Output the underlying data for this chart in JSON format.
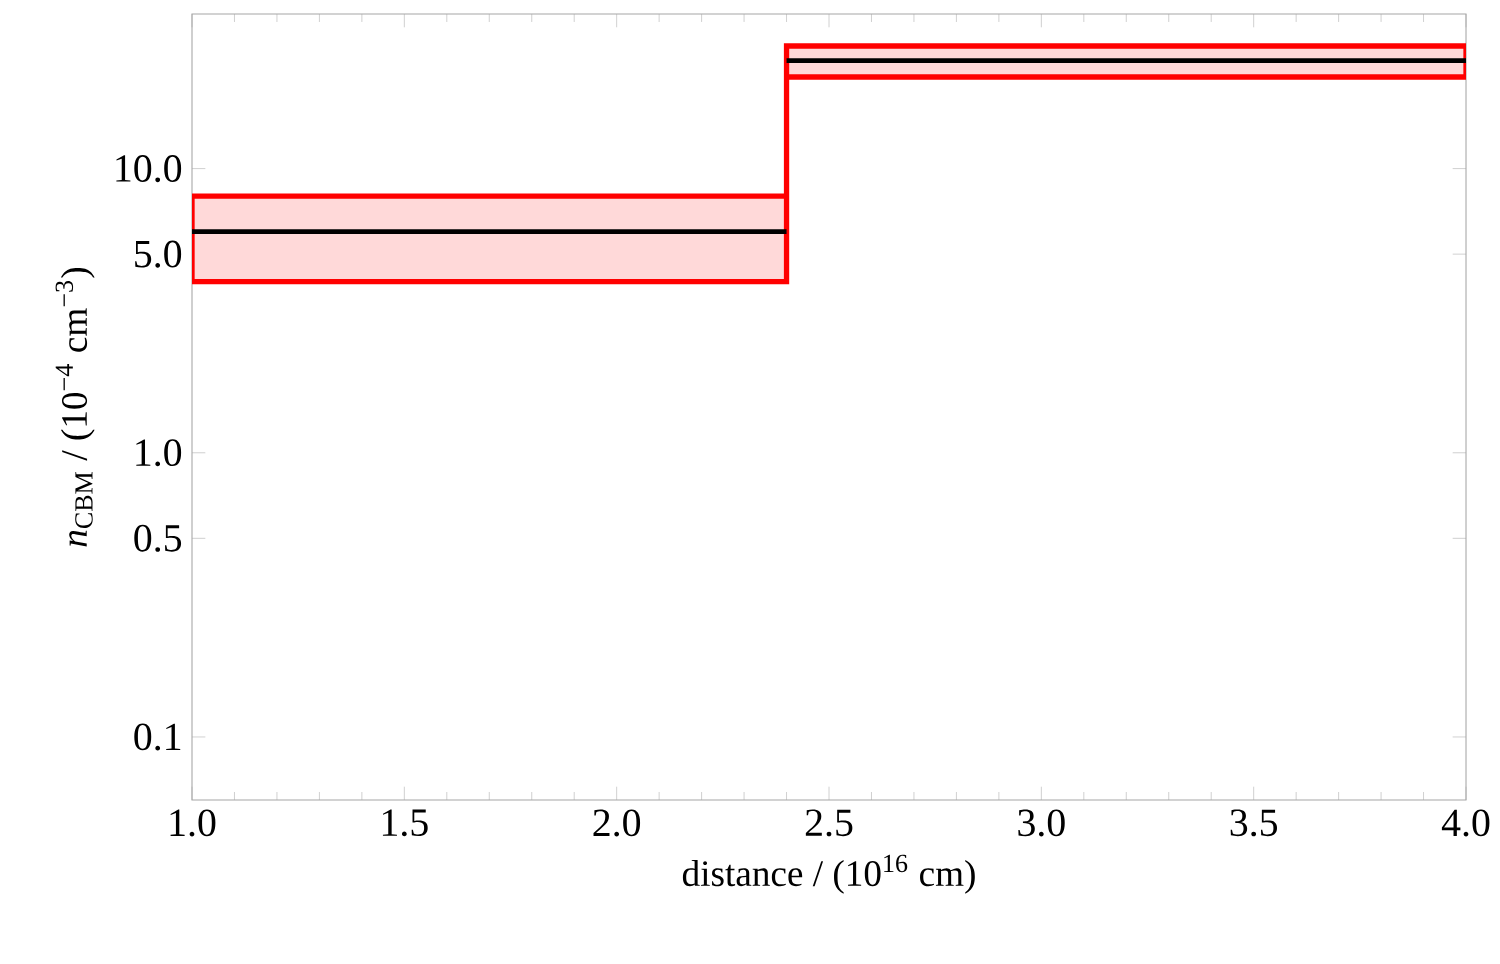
{
  "chart_data": {
    "type": "step",
    "xlabel": "distance / (10$^{16}$ cm)",
    "ylabel": "*n*$_{CBM}$ / (10$^{−4}$ cm$^{−3}$)",
    "x": [
      1.0,
      2.4,
      4.0
    ],
    "series": [
      {
        "color": "#000000",
        "values": [
          6,
          24,
          24
        ],
        "lower": [
          4,
          21,
          21
        ],
        "upper": [
          8,
          27,
          27
        ]
      }
    ],
    "xlim": [
      1,
      4
    ],
    "ylim": [
      0.06,
      35
    ],
    "xticks": [
      {
        "value": 1,
        "label": "1.0"
      },
      1.5,
      {
        "value": 2,
        "label": "2.0"
      },
      2.5,
      {
        "value": 3,
        "label": "3.0"
      },
      3.5,
      {
        "value": 4,
        "label": "4.0"
      }
    ],
    "yticks": [
      {
        "value": 0.1,
        "label": "0.1"
      },
      {
        "value": 0.5,
        "label": "0.5"
      },
      {
        "value": 1,
        "label": "1.0"
      },
      {
        "value": 5,
        "label": "5.0"
      },
      {
        "value": 10,
        "label": "10.0"
      }
    ],
    "log": "y",
    "grid": false,
    "marker": "none",
    "line_style": "solid"
  }
}
